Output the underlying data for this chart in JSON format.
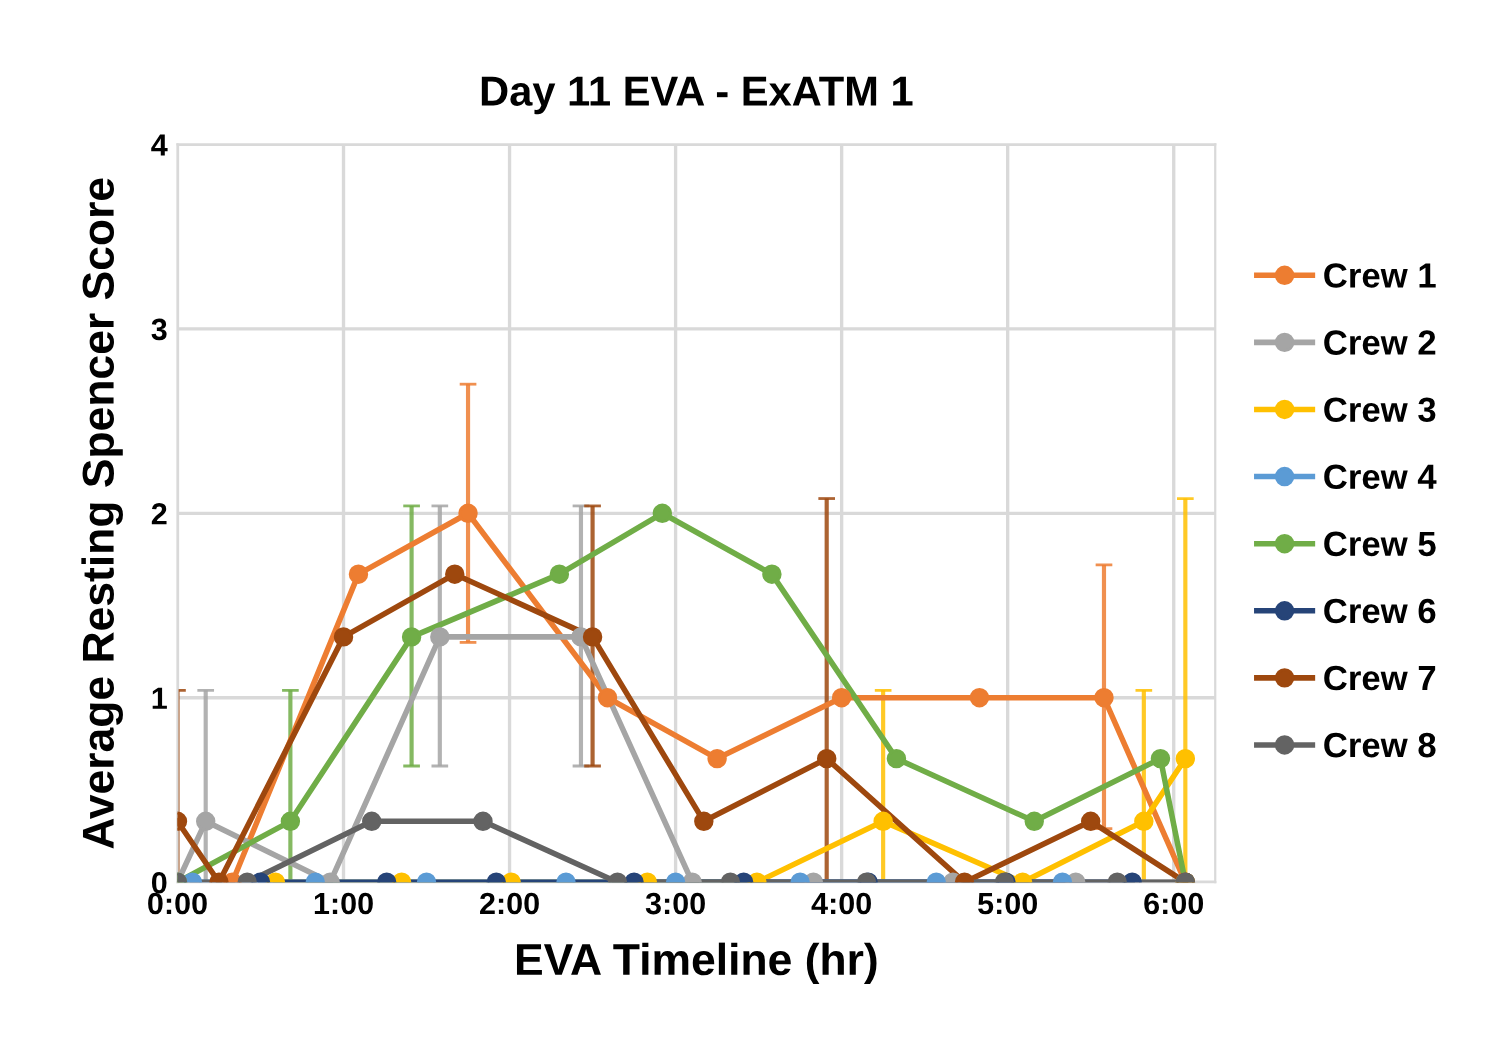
{
  "chart_data": {
    "type": "line",
    "title": "Day 11 EVA - ExATM 1",
    "xlabel": "EVA Timeline (hr)",
    "ylabel": "Average Resting Spencer Score",
    "xlim": [
      0,
      6.25
    ],
    "xticks": [
      {
        "value": 0,
        "label": "0:00"
      },
      {
        "value": 1,
        "label": "1:00"
      },
      {
        "value": 2,
        "label": "2:00"
      },
      {
        "value": 3,
        "label": "3:00"
      },
      {
        "value": 4,
        "label": "4:00"
      },
      {
        "value": 5,
        "label": "5:00"
      },
      {
        "value": 6,
        "label": "6:00"
      }
    ],
    "ylim": [
      0,
      4
    ],
    "yticks": [
      0,
      1,
      2,
      3,
      4
    ],
    "grid": true,
    "legend": "right",
    "marker": "circle",
    "line_style": "solid",
    "series": [
      {
        "name": "Crew 1",
        "color": "#ed7d31",
        "x": [
          0.33,
          1.09,
          1.75,
          2.59,
          3.25,
          4.0,
          4.83,
          5.58,
          6.07
        ],
        "values": [
          0,
          1.67,
          2,
          1,
          0.67,
          1,
          1,
          1,
          0
        ],
        "errors": [
          null,
          null,
          [
            1.3,
            2.7
          ],
          null,
          null,
          null,
          null,
          [
            0.29,
            1.72
          ],
          null
        ]
      },
      {
        "name": "Crew 2",
        "color": "#a5a5a5",
        "x": [
          0,
          0.17,
          0.92,
          1.58,
          2.43,
          3.1,
          3.83,
          4.67,
          5.41,
          6.07
        ],
        "values": [
          0,
          0.33,
          0,
          1.33,
          1.33,
          0,
          0,
          0,
          0,
          0
        ],
        "errors": [
          null,
          [
            0,
            1.04
          ],
          null,
          [
            0.63,
            2.04
          ],
          [
            0.63,
            2.04
          ],
          null,
          null,
          null,
          null,
          null
        ]
      },
      {
        "name": "Crew 3",
        "color": "#ffc000",
        "x": [
          0.59,
          1.35,
          2.01,
          2.83,
          3.49,
          4.25,
          5.09,
          5.82,
          6.07
        ],
        "values": [
          0,
          0,
          0,
          0,
          0,
          0.33,
          0,
          0.33,
          0.67
        ],
        "errors": [
          null,
          null,
          null,
          null,
          null,
          [
            0,
            1.04
          ],
          null,
          [
            0,
            1.04
          ],
          [
            0,
            2.08
          ]
        ]
      },
      {
        "name": "Crew 4",
        "color": "#5b9bd5",
        "x": [
          0.09,
          0.83,
          1.5,
          2.34,
          3.0,
          3.75,
          4.57,
          5.33
        ],
        "values": [
          0,
          0,
          0,
          0,
          0,
          0,
          0,
          0
        ]
      },
      {
        "name": "Crew 5",
        "color": "#70ad47",
        "x": [
          0,
          0.68,
          1.41,
          2.3,
          2.92,
          3.58,
          4.33,
          5.16,
          5.92,
          6.07
        ],
        "values": [
          0,
          0.33,
          1.33,
          1.67,
          2,
          1.67,
          0.67,
          0.33,
          0.67,
          0
        ],
        "errors": [
          null,
          [
            0,
            1.04
          ],
          [
            0.63,
            2.04
          ],
          null,
          null,
          null,
          null,
          null,
          null,
          null
        ]
      },
      {
        "name": "Crew 6",
        "color": "#264478",
        "x": [
          0.5,
          1.26,
          1.92,
          2.75,
          3.41,
          4.16,
          4.99,
          5.75
        ],
        "values": [
          0,
          0,
          0,
          0,
          0,
          0,
          0,
          0
        ]
      },
      {
        "name": "Crew 7",
        "color": "#9e480e",
        "x": [
          0,
          0.25,
          1.0,
          1.67,
          2.5,
          3.17,
          3.91,
          4.74,
          5.5,
          6.07
        ],
        "values": [
          0.33,
          0,
          1.33,
          1.67,
          1.33,
          0.33,
          0.67,
          0,
          0.33,
          0
        ],
        "errors": [
          [
            0,
            1.04
          ],
          null,
          null,
          null,
          [
            0.63,
            2.04
          ],
          null,
          [
            0,
            2.08
          ],
          null,
          null,
          null
        ]
      },
      {
        "name": "Crew 8",
        "color": "#636363",
        "x": [
          0,
          0.42,
          1.17,
          1.84,
          2.65,
          3.33,
          4.15,
          4.98,
          5.66,
          6.07
        ],
        "values": [
          0,
          0,
          0.33,
          0.33,
          0,
          0,
          0,
          0,
          0,
          0
        ]
      }
    ]
  }
}
